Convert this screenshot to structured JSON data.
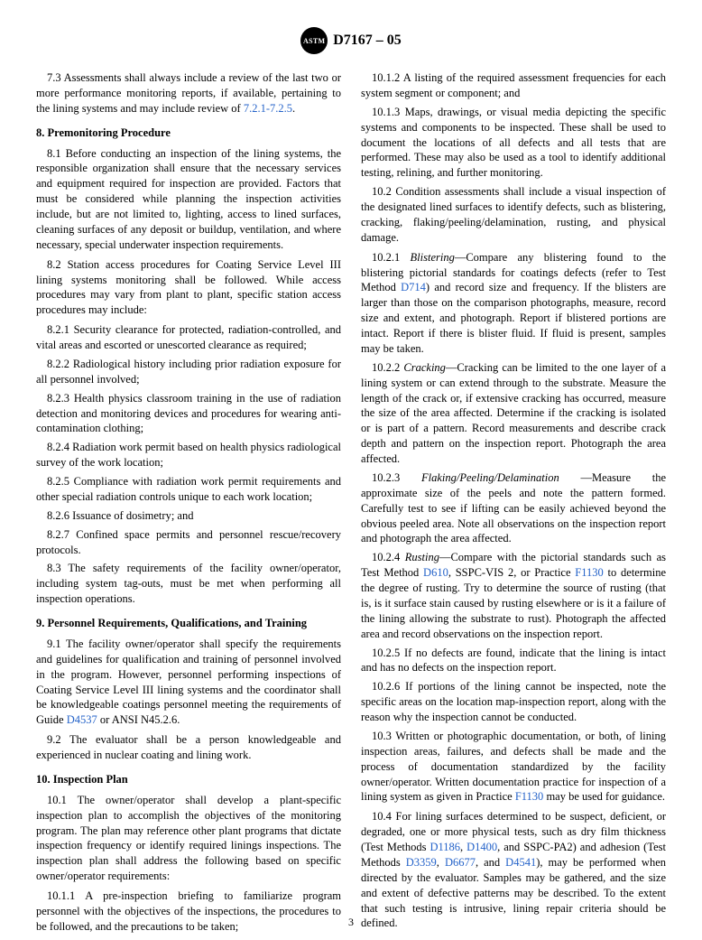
{
  "header": {
    "badge_text": "ASTM",
    "doc_id": "D7167 – 05"
  },
  "page_number": "3",
  "refs": {
    "r721_725": "7.2.1-7.2.5",
    "d4537": "D4537",
    "d714": "D714",
    "d610": "D610",
    "f1130_a": "F1130",
    "f1130_b": "F1130",
    "d1186": "D1186",
    "d1400": "D1400",
    "d3359": "D3359",
    "d6677": "D6677",
    "d4541": "D4541"
  },
  "p": {
    "s7_3a": "7.3 Assessments shall always include a review of the last two or more performance monitoring reports, if available, pertaining to the lining systems and may include review of ",
    "s7_3b": ".",
    "h8": "8.  Premonitoring Procedure",
    "s8_1": "8.1 Before conducting an inspection of the lining systems, the responsible organization shall ensure that the necessary services and equipment required for inspection are provided. Factors that must be considered while planning the inspection activities include, but are not limited to, lighting, access to lined surfaces, cleaning surfaces of any deposit or buildup, ventilation, and where necessary, special underwater inspection requirements.",
    "s8_2": "8.2 Station access procedures for Coating Service Level III lining systems monitoring shall be followed. While access procedures may vary from plant to plant, specific station access procedures may include:",
    "s8_2_1": "8.2.1 Security clearance for protected, radiation-controlled, and vital areas and escorted or unescorted clearance as required;",
    "s8_2_2": "8.2.2 Radiological history including prior radiation exposure for all personnel involved;",
    "s8_2_3": "8.2.3 Health physics classroom training in the use of radiation detection and monitoring devices and procedures for wearing anti-contamination clothing;",
    "s8_2_4": "8.2.4 Radiation work permit based on health physics radiological survey of the work location;",
    "s8_2_5": "8.2.5 Compliance with radiation work permit requirements and other special radiation controls unique to each work location;",
    "s8_2_6": "8.2.6 Issuance of dosimetry; and",
    "s8_2_7": "8.2.7 Confined space permits and personnel rescue/recovery protocols.",
    "s8_3": "8.3 The safety requirements of the facility owner/operator, including system tag-outs, must be met when performing all inspection operations.",
    "h9": "9.  Personnel Requirements, Qualifications, and Training",
    "s9_1a": "9.1 The facility owner/operator shall specify the requirements and guidelines for qualification and training of personnel involved in the program. However, personnel performing inspections of Coating Service Level III lining systems and the coordinator shall be knowledgeable coatings personnel meeting the requirements of Guide ",
    "s9_1b": " or ANSI N45.2.6.",
    "s9_2": "9.2 The evaluator shall be a person knowledgeable and experienced in nuclear coating and lining work.",
    "h10": "10.  Inspection Plan",
    "s10_1": "10.1 The owner/operator shall develop a plant-specific inspection plan to accomplish the objectives of the monitoring program. The plan may reference other plant programs that dictate inspection frequency or identify required linings inspections. The inspection plan shall address the following based on specific owner/operator requirements:",
    "s10_1_1": "10.1.1 A pre-inspection briefing to familiarize program personnel with the objectives of the inspections, the procedures to be followed, and the precautions to be taken;",
    "s10_1_2": "10.1.2 A listing of the required assessment frequencies for each system segment or component; and",
    "s10_1_3": "10.1.3 Maps, drawings, or visual media depicting the specific systems and components to be inspected. These shall be used to document the locations of all defects and all tests that are performed. These may also be used as a tool to identify additional testing, relining, and further monitoring.",
    "s10_2": "10.2 Condition assessments shall include a visual inspection of the designated lined surfaces to identify defects, such as blistering, cracking, flaking/peeling/delamination, rusting, and physical damage.",
    "s10_2_1_term": "Blistering",
    "s10_2_1a": "10.2.1 ",
    "s10_2_1b": "—Compare any blistering found to the blistering pictorial standards for coatings defects (refer to Test Method ",
    "s10_2_1c": ") and record size and frequency. If the blisters are larger than those on the comparison photographs, measure, record size and extent, and photograph. Report if blistered portions are intact. Report if there is blister fluid. If fluid is present, samples may be taken.",
    "s10_2_2_term": "Cracking",
    "s10_2_2a": "10.2.2 ",
    "s10_2_2b": "—Cracking can be limited to the one layer of a lining system or can extend through to the substrate. Measure the length of the crack or, if extensive cracking has occurred, measure the size of the area affected. Determine if the cracking is isolated or is part of a pattern. Record measurements and describe crack depth and pattern on the inspection report. Photograph the area affected.",
    "s10_2_3_term": "Flaking/Peeling/Delamination",
    "s10_2_3a": "10.2.3 ",
    "s10_2_3b": " —Measure the approximate size of the peels and note the pattern formed. Carefully test to see if lifting can be easily achieved beyond the obvious peeled area. Note all observations on the inspection report and photograph the area affected.",
    "s10_2_4_term": "Rusting",
    "s10_2_4a": "10.2.4 ",
    "s10_2_4b": "—Compare with the pictorial standards such as Test Method ",
    "s10_2_4c": ", SSPC-VIS 2, or Practice ",
    "s10_2_4d": " to determine the degree of rusting. Try to determine the source of rusting (that is, is it surface stain caused by rusting elsewhere or is it a failure of the lining allowing the substrate to rust). Photograph the affected area and record observations on the inspection report.",
    "s10_2_5": "10.2.5 If no defects are found, indicate that the lining is intact and has no defects on the inspection report.",
    "s10_2_6": "10.2.6 If portions of the lining cannot be inspected, note the specific areas on the location map-inspection report, along with the reason why the inspection cannot be conducted.",
    "s10_3a": "10.3 Written or photographic documentation, or both, of lining inspection areas, failures, and defects shall be made and the process of documentation standardized by the facility owner/operator. Written documentation practice for inspection of a lining system as given in Practice ",
    "s10_3b": " may be used for guidance.",
    "s10_4a": "10.4 For lining surfaces determined to be suspect, deficient, or degraded, one or more physical tests, such as dry film thickness (Test Methods ",
    "s10_4b": ", ",
    "s10_4c": ", and SSPC-PA2) and adhesion (Test Methods ",
    "s10_4d": ", ",
    "s10_4e": ", and ",
    "s10_4f": "), may be performed when directed by the evaluator. Samples may be gathered, and the size and extent of defective patterns may be described. To the extent that such testing is intrusive, lining repair criteria should be defined."
  }
}
